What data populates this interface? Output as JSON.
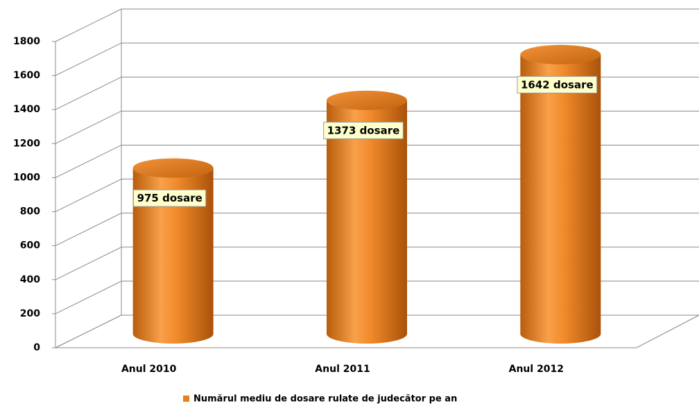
{
  "chart_data": {
    "type": "bar",
    "categories": [
      "Anul 2010",
      "Anul 2011",
      "Anul 2012"
    ],
    "series": [
      {
        "name": "Numărul mediu de dosare rulate de judecător pe an",
        "color": "#e8801e",
        "values": [
          975,
          1373,
          1642
        ],
        "value_labels": [
          "975 dosare",
          "1373 dosare",
          "1642 dosare"
        ]
      }
    ],
    "ylim": [
      0,
      1800
    ],
    "yticks": [
      0,
      200,
      400,
      600,
      800,
      1000,
      1200,
      1400,
      1600,
      1800
    ],
    "grid": true,
    "legend": "bottom"
  }
}
